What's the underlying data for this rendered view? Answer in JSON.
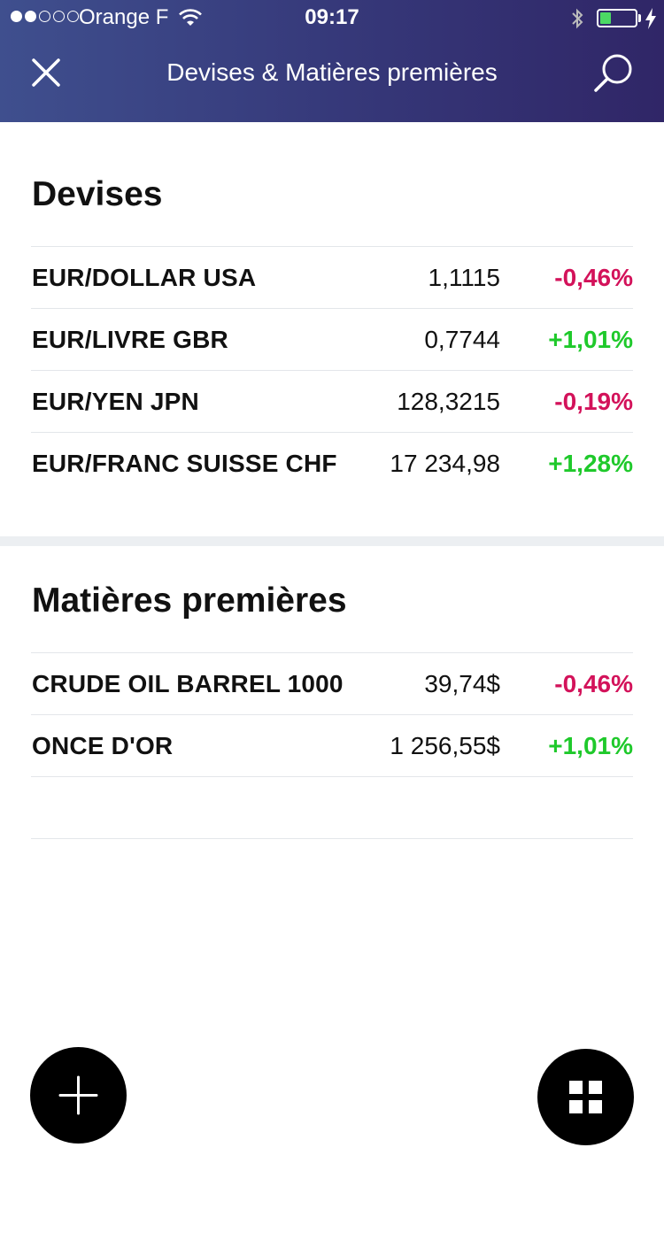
{
  "status_bar": {
    "carrier": "Orange F",
    "time": "09:17",
    "signal_bars_filled": 2,
    "signal_bars_total": 5,
    "battery_level": 0.25,
    "battery_color": "#4cd964"
  },
  "nav": {
    "title": "Devises & Matières premières",
    "close_icon": "close-icon",
    "search_icon": "search-icon"
  },
  "sections": [
    {
      "title": "Devises",
      "rows": [
        {
          "name": "EUR/DOLLAR USA",
          "value": "1,1115",
          "change": "-0,46%",
          "trend": "down"
        },
        {
          "name": "EUR/LIVRE GBR",
          "value": "0,7744",
          "change": "+1,01%",
          "trend": "up"
        },
        {
          "name": "EUR/YEN JPN",
          "value": "128,3215",
          "change": "-0,19%",
          "trend": "down"
        },
        {
          "name": "EUR/FRANC SUISSE CHF",
          "value": "17 234,98",
          "change": "+1,28%",
          "trend": "up"
        }
      ]
    },
    {
      "title": "Matières premières",
      "rows": [
        {
          "name": "CRUDE OIL BARREL 1000",
          "value": "39,74$",
          "change": "-0,46%",
          "trend": "down"
        },
        {
          "name": "ONCE D'OR",
          "value": "1 256,55$",
          "change": "+1,01%",
          "trend": "up"
        }
      ]
    }
  ],
  "colors": {
    "header_gradient_start": "#3f4f8e",
    "header_gradient_end": "#302667",
    "negative": "#d3125a",
    "positive": "#1fc92b"
  },
  "fabs": {
    "add_icon": "plus-icon",
    "grid_icon": "grid-icon"
  }
}
